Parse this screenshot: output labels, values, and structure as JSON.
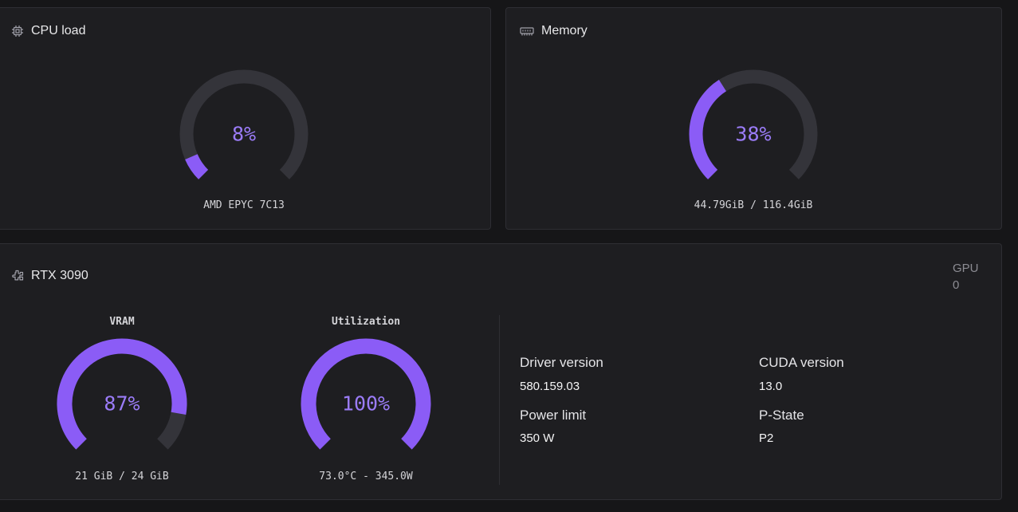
{
  "colors": {
    "accent": "#8b5cf6",
    "track": "#34343a",
    "value_text": "#9b7cf8"
  },
  "cpu": {
    "icon": "cpu-chip-icon",
    "title": "CPU load",
    "gauge": {
      "percent": 8,
      "label": "8%"
    },
    "subtitle": "AMD EPYC 7C13"
  },
  "memory": {
    "icon": "memory-module-icon",
    "title": "Memory",
    "gauge": {
      "percent": 38,
      "label": "38%"
    },
    "subtitle": "44.79GiB / 116.4GiB"
  },
  "gpu": {
    "icon": "gpu-puzzle-icon",
    "title": "RTX 3090",
    "badge_line1": "GPU",
    "badge_line2": "0",
    "vram": {
      "title": "VRAM",
      "percent": 87,
      "label": "87%",
      "subtitle": "21 GiB / 24 GiB"
    },
    "utilization": {
      "title": "Utilization",
      "percent": 100,
      "label": "100%",
      "subtitle": "73.0°C - 345.0W"
    },
    "info": {
      "driver_label": "Driver version",
      "driver_value": "580.159.03",
      "cuda_label": "CUDA version",
      "cuda_value": "13.0",
      "power_label": "Power limit",
      "power_value": "350 W",
      "pstate_label": "P-State",
      "pstate_value": "P2"
    }
  }
}
